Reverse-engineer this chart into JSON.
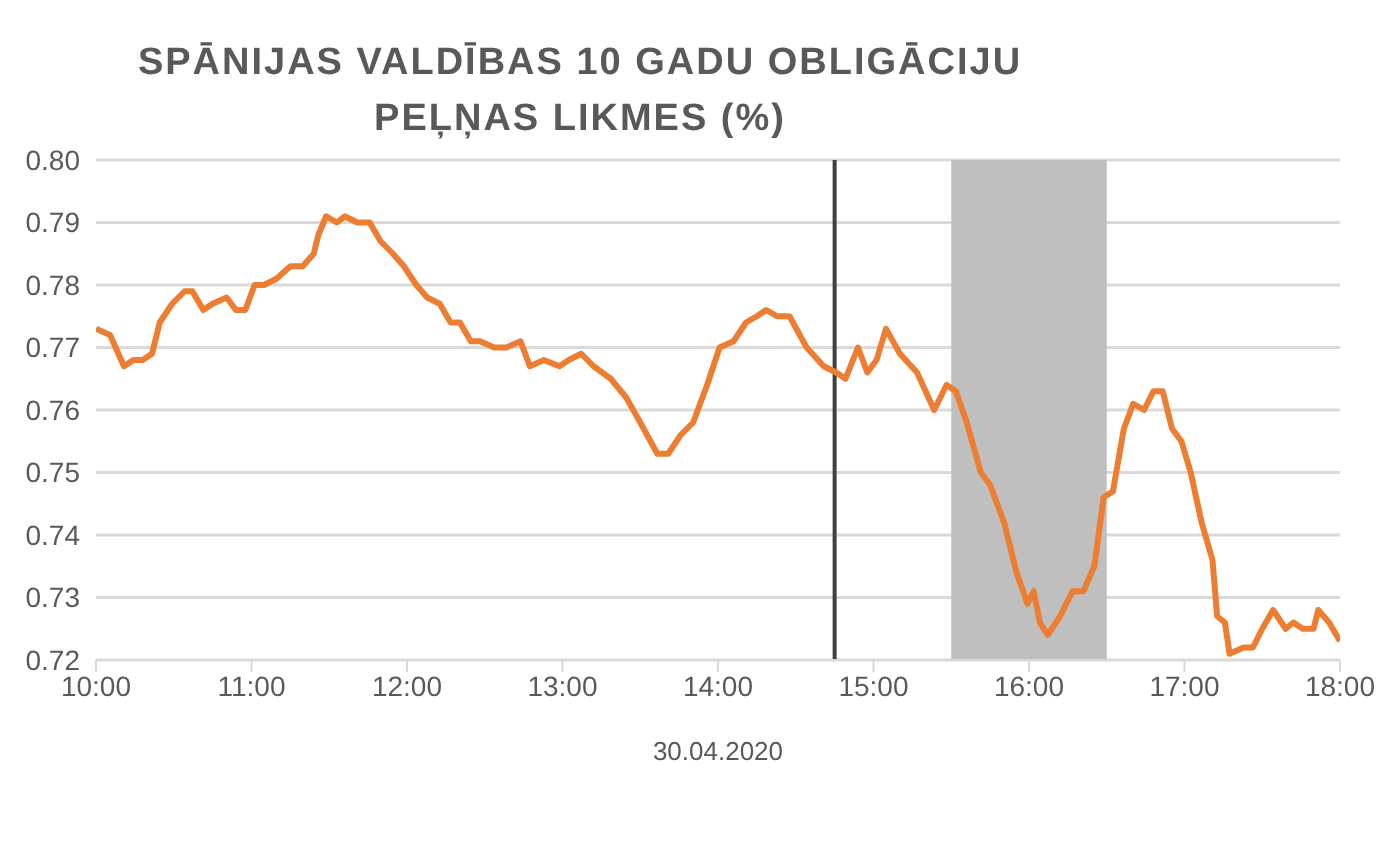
{
  "chart_data": {
    "type": "line",
    "title": "SPĀNIJAS VALDĪBAS 10 GADU OBLIGĀCIJU PEĻŅAS LIKMES (%)",
    "xlabel": "30.04.2020",
    "x": [
      10.0,
      10.09,
      10.18,
      10.24,
      10.3,
      10.36,
      10.41,
      10.49,
      10.57,
      10.62,
      10.69,
      10.75,
      10.84,
      10.9,
      10.96,
      11.02,
      11.08,
      11.16,
      11.25,
      11.33,
      11.4,
      11.43,
      11.48,
      11.55,
      11.6,
      11.68,
      11.76,
      11.83,
      11.91,
      11.98,
      12.06,
      12.13,
      12.21,
      12.28,
      12.34,
      12.41,
      12.47,
      12.56,
      12.64,
      12.73,
      12.79,
      12.88,
      12.98,
      13.04,
      13.12,
      13.2,
      13.31,
      13.41,
      13.5,
      13.61,
      13.68,
      13.76,
      13.84,
      13.93,
      14.01,
      14.1,
      14.18,
      14.25,
      14.31,
      14.38,
      14.46,
      14.57,
      14.68,
      14.76,
      14.82,
      14.9,
      14.96,
      15.02,
      15.08,
      15.17,
      15.28,
      15.39,
      15.47,
      15.53,
      15.6,
      15.69,
      15.75,
      15.84,
      15.92,
      15.99,
      16.03,
      16.07,
      16.12,
      16.2,
      16.28,
      16.35,
      16.42,
      16.48,
      16.54,
      16.61,
      16.67,
      16.74,
      16.8,
      16.86,
      16.92,
      16.98,
      17.04,
      17.11,
      17.18,
      17.21,
      17.26,
      17.29,
      17.38,
      17.44,
      17.5,
      17.57,
      17.65,
      17.7,
      17.76,
      17.83,
      17.86,
      17.93,
      18.0
    ],
    "series": [
      {
        "color": "#ed7d31",
        "values": [
          0.773,
          0.772,
          0.767,
          0.768,
          0.768,
          0.769,
          0.774,
          0.777,
          0.779,
          0.779,
          0.776,
          0.777,
          0.778,
          0.776,
          0.776,
          0.78,
          0.78,
          0.781,
          0.783,
          0.783,
          0.785,
          0.788,
          0.791,
          0.79,
          0.791,
          0.79,
          0.79,
          0.787,
          0.785,
          0.783,
          0.78,
          0.778,
          0.777,
          0.774,
          0.774,
          0.771,
          0.771,
          0.77,
          0.77,
          0.771,
          0.767,
          0.768,
          0.767,
          0.768,
          0.769,
          0.767,
          0.765,
          0.762,
          0.758,
          0.753,
          0.753,
          0.756,
          0.758,
          0.764,
          0.77,
          0.771,
          0.774,
          0.775,
          0.776,
          0.775,
          0.775,
          0.77,
          0.767,
          0.766,
          0.765,
          0.77,
          0.766,
          0.768,
          0.773,
          0.769,
          0.766,
          0.76,
          0.764,
          0.763,
          0.758,
          0.75,
          0.748,
          0.742,
          0.734,
          0.729,
          0.731,
          0.726,
          0.724,
          0.727,
          0.731,
          0.731,
          0.735,
          0.746,
          0.747,
          0.757,
          0.761,
          0.76,
          0.763,
          0.763,
          0.757,
          0.755,
          0.75,
          0.742,
          0.736,
          0.727,
          0.726,
          0.721,
          0.722,
          0.722,
          0.725,
          0.728,
          0.725,
          0.726,
          0.725,
          0.725,
          0.728,
          0.726,
          0.723
        ]
      }
    ],
    "xlim": [
      10,
      18
    ],
    "xticks": [
      {
        "value": 10,
        "label": "10:00"
      },
      {
        "value": 11,
        "label": "11:00"
      },
      {
        "value": 12,
        "label": "12:00"
      },
      {
        "value": 13,
        "label": "13:00"
      },
      {
        "value": 14,
        "label": "14:00"
      },
      {
        "value": 15,
        "label": "15:00"
      },
      {
        "value": 16,
        "label": "16:00"
      },
      {
        "value": 17,
        "label": "17:00"
      },
      {
        "value": 18,
        "label": "18:00"
      }
    ],
    "ylim": [
      0.72,
      0.8
    ],
    "yticks": [
      {
        "value": 0.72,
        "label": "0.72"
      },
      {
        "value": 0.73,
        "label": "0.73"
      },
      {
        "value": 0.74,
        "label": "0.74"
      },
      {
        "value": 0.75,
        "label": "0.75"
      },
      {
        "value": 0.76,
        "label": "0.76"
      },
      {
        "value": 0.77,
        "label": "0.77"
      },
      {
        "value": 0.78,
        "label": "0.78"
      },
      {
        "value": 0.79,
        "label": "0.79"
      },
      {
        "value": 0.8,
        "label": "0.80"
      }
    ],
    "grid": "y",
    "legend": false,
    "marker": "none",
    "line_style": "solid",
    "ref_lines": [
      {
        "axis": "x",
        "value": 14.75,
        "color": "#404040"
      }
    ],
    "bands": [
      {
        "axis": "x",
        "from": 15.5,
        "to": 16.5,
        "color": "#bfbfbf"
      }
    ]
  }
}
